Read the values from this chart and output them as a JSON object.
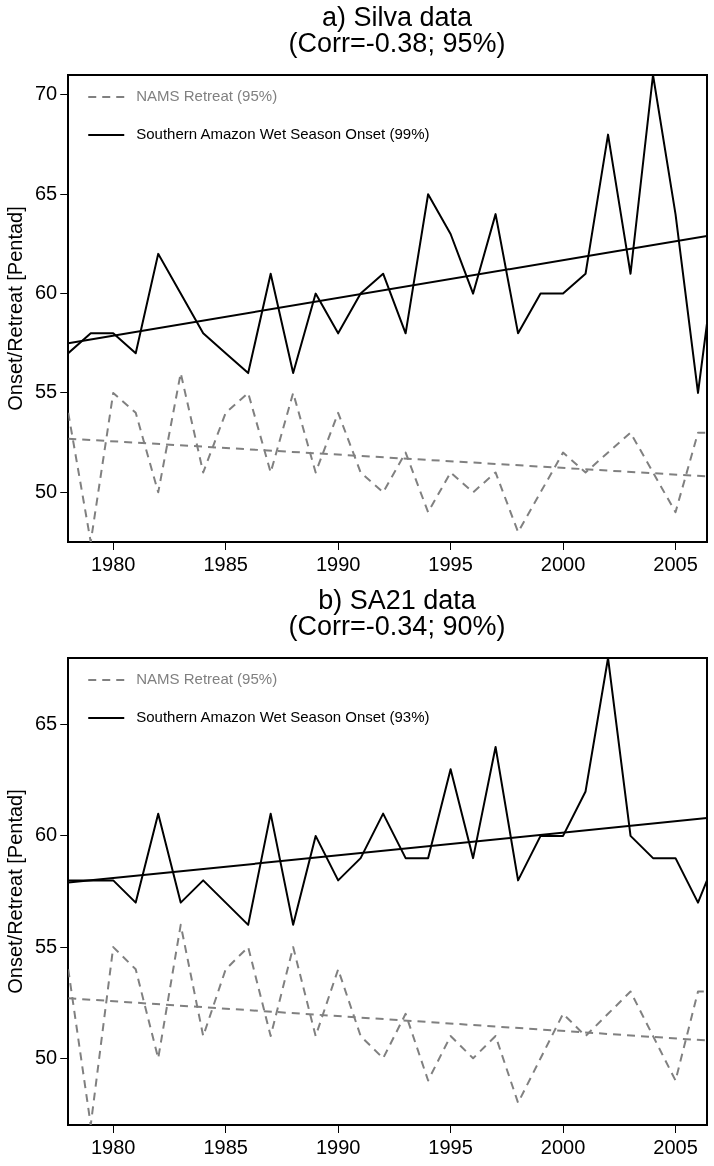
{
  "chart_data": [
    {
      "type": "line",
      "title": "a) Silva data",
      "subtitle": "(Corr=-0.38; 95%)",
      "ylabel": "Onset/Retreat [Pentad]",
      "xlim": [
        1978,
        2006.4
      ],
      "ylim": [
        47.5,
        71
      ],
      "xticks": [
        1980,
        1985,
        1990,
        1995,
        2000,
        2005
      ],
      "yticks": [
        50,
        55,
        60,
        65,
        70
      ],
      "grid": false,
      "legend": "top left",
      "marker": "none",
      "series": [
        {
          "name": "NAMS Retreat (95%)",
          "color": "#808080",
          "line_style": "dashed",
          "x": [
            1978,
            1979,
            1980,
            1981,
            1982,
            1983,
            1984,
            1985,
            1986,
            1987,
            1988,
            1989,
            1990,
            1991,
            1992,
            1993,
            1994,
            1995,
            1996,
            1997,
            1998,
            1999,
            2000,
            2001,
            2002,
            2003,
            2004,
            2005,
            2006,
            2006.4
          ],
          "values": [
            54,
            47.5,
            55,
            54,
            50,
            56,
            51,
            54,
            55,
            51,
            55,
            51,
            54,
            51,
            50,
            52,
            49,
            51,
            50,
            51,
            48,
            50,
            52,
            51,
            52,
            53,
            51,
            49,
            53,
            53
          ]
        },
        {
          "name": "Southern Amazon Wet Season Onset (99%)",
          "color": "#000000",
          "line_style": "solid",
          "x": [
            1978,
            1979,
            1980,
            1981,
            1982,
            1983,
            1984,
            1985,
            1986,
            1987,
            1988,
            1989,
            1990,
            1991,
            1992,
            1993,
            1994,
            1995,
            1996,
            1997,
            1998,
            1999,
            2000,
            2001,
            2002,
            2003,
            2004,
            2005,
            2006,
            2006.4
          ],
          "values": [
            57,
            58,
            58,
            57,
            62,
            60,
            58,
            57,
            56,
            61,
            56,
            60,
            58,
            60,
            61,
            58,
            65,
            63,
            60,
            64,
            58,
            60,
            60,
            61,
            68,
            61,
            71,
            64,
            55,
            58.5
          ]
        },
        {
          "color": "#808080",
          "line_style": "dashed",
          "x": [
            1978,
            2006.4
          ],
          "values": [
            52.7,
            50.8
          ]
        },
        {
          "color": "#000000",
          "line_style": "solid",
          "x": [
            1978,
            2006.4
          ],
          "values": [
            57.5,
            62.9
          ]
        }
      ]
    },
    {
      "type": "line",
      "title": "b) SA21 data",
      "subtitle": "(Corr=-0.34; 90%)",
      "ylabel": "Onset/Retreat [Pentad]",
      "xlim": [
        1978,
        2006.4
      ],
      "ylim": [
        47,
        68
      ],
      "xticks": [
        1980,
        1985,
        1990,
        1995,
        2000,
        2005
      ],
      "yticks": [
        50,
        55,
        60,
        65
      ],
      "grid": false,
      "legend": "top left",
      "marker": "none",
      "series": [
        {
          "name": "NAMS Retreat (95%)",
          "color": "#808080",
          "line_style": "dashed",
          "x": [
            1978,
            1979,
            1980,
            1981,
            1982,
            1983,
            1984,
            1985,
            1986,
            1987,
            1988,
            1989,
            1990,
            1991,
            1992,
            1993,
            1994,
            1995,
            1996,
            1997,
            1998,
            1999,
            2000,
            2001,
            2002,
            2003,
            2004,
            2005,
            2006,
            2006.4
          ],
          "values": [
            54,
            47,
            55,
            54,
            50,
            56,
            51,
            54,
            55,
            51,
            55,
            51,
            54,
            51,
            50,
            52,
            49,
            51,
            50,
            51,
            48,
            50,
            52,
            51,
            52,
            53,
            51,
            49,
            53,
            53
          ]
        },
        {
          "name": "Southern Amazon Wet Season Onset (93%)",
          "color": "#000000",
          "line_style": "solid",
          "x": [
            1978,
            1979,
            1980,
            1981,
            1982,
            1983,
            1984,
            1985,
            1986,
            1987,
            1988,
            1989,
            1990,
            1991,
            1992,
            1993,
            1994,
            1995,
            1996,
            1997,
            1998,
            1999,
            2000,
            2001,
            2002,
            2003,
            2004,
            2005,
            2006,
            2006.4
          ],
          "values": [
            58,
            58,
            58,
            57,
            61,
            57,
            58,
            57,
            56,
            61,
            56,
            60,
            58,
            59,
            61,
            59,
            59,
            63,
            59,
            64,
            58,
            60,
            60,
            62,
            68,
            60,
            59,
            59,
            57,
            58
          ]
        },
        {
          "color": "#808080",
          "line_style": "dashed",
          "x": [
            1978,
            2006.4
          ],
          "values": [
            52.7,
            50.8
          ]
        },
        {
          "color": "#000000",
          "line_style": "solid",
          "x": [
            1978,
            2006.4
          ],
          "values": [
            57.9,
            60.8
          ]
        }
      ]
    }
  ]
}
